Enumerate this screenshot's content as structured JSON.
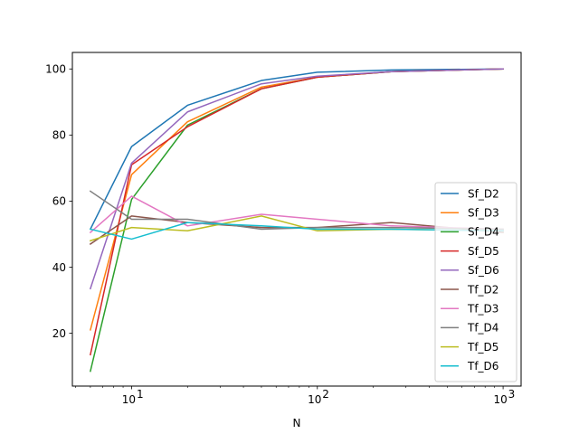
{
  "chart_data": {
    "type": "line",
    "xlabel": "N",
    "ylabel": "",
    "xscale": "log",
    "xlim": [
      4.8,
      1250
    ],
    "ylim": [
      4,
      105
    ],
    "x_ticks": [
      {
        "value": 10,
        "base": "10",
        "exp": "1"
      },
      {
        "value": 100,
        "base": "10",
        "exp": "2"
      },
      {
        "value": 1000,
        "base": "10",
        "exp": "3"
      }
    ],
    "y_ticks": [
      20,
      40,
      60,
      80,
      100
    ],
    "grid": false,
    "legend_position": "lower-right",
    "x": [
      6,
      10,
      20,
      50,
      100,
      250,
      1000
    ],
    "series": [
      {
        "name": "Sf_D2",
        "color": "#1f77b4",
        "values": [
          51.5,
          76.5,
          89,
          96.5,
          99,
          99.7,
          100
        ]
      },
      {
        "name": "Sf_D3",
        "color": "#ff7f0e",
        "values": [
          21,
          68,
          84,
          94.5,
          97.5,
          99.2,
          100
        ]
      },
      {
        "name": "Sf_D4",
        "color": "#2ca02c",
        "values": [
          8.5,
          60.5,
          83,
          94,
          97.5,
          99.2,
          100
        ]
      },
      {
        "name": "Sf_D5",
        "color": "#d62728",
        "values": [
          13.5,
          71,
          82.5,
          94,
          97.5,
          99.2,
          100
        ]
      },
      {
        "name": "Sf_D6",
        "color": "#9467bd",
        "values": [
          33.5,
          71.5,
          87,
          95.5,
          97.8,
          99.2,
          100
        ]
      },
      {
        "name": "Tf_D2",
        "color": "#8c564b",
        "values": [
          47,
          55.5,
          53.5,
          52,
          52,
          53.5,
          50.5
        ]
      },
      {
        "name": "Tf_D3",
        "color": "#e377c2",
        "values": [
          50.5,
          61.5,
          52.5,
          56,
          54.5,
          52.5,
          51.5
        ]
      },
      {
        "name": "Tf_D4",
        "color": "#7f7f7f",
        "values": [
          63,
          54.5,
          54.5,
          51.5,
          52,
          52,
          51.5
        ]
      },
      {
        "name": "Tf_D5",
        "color": "#bcbd22",
        "values": [
          48,
          52,
          51,
          55.5,
          51,
          51.5,
          51
        ]
      },
      {
        "name": "Tf_D6",
        "color": "#17becf",
        "values": [
          51.5,
          48.5,
          53.5,
          52.5,
          51.5,
          51.5,
          51
        ]
      }
    ]
  }
}
